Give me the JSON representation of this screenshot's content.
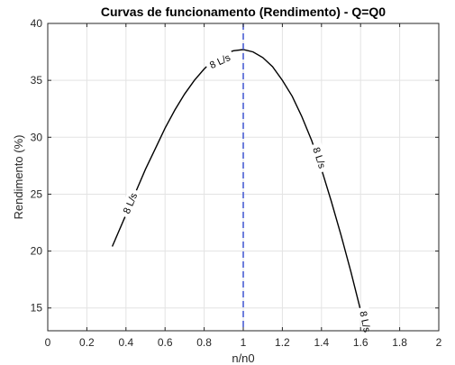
{
  "chart_data": {
    "type": "line",
    "title": "Curvas de funcionamento (Rendimento) - Q=Q0",
    "xlabel": "n/n0",
    "ylabel": "Rendimento (%)",
    "xlim": [
      0,
      2
    ],
    "ylim": [
      13,
      40
    ],
    "xticks": [
      0,
      0.2,
      0.4,
      0.6,
      0.8,
      1,
      1.2,
      1.4,
      1.6,
      1.8,
      2
    ],
    "xtick_labels": [
      "0",
      "0.2",
      "0.4",
      "0.6",
      "0.8",
      "1",
      "1.2",
      "1.4",
      "1.6",
      "1.8",
      "2"
    ],
    "yticks": [
      15,
      20,
      25,
      30,
      35,
      40
    ],
    "ytick_labels": [
      "15",
      "20",
      "25",
      "30",
      "35",
      "40"
    ],
    "grid": true,
    "series": [
      {
        "x": [
          0.33,
          0.36,
          0.4,
          0.45,
          0.5,
          0.55,
          0.6,
          0.65,
          0.7,
          0.75,
          0.8,
          0.85,
          0.9,
          0.95,
          1.0,
          1.05,
          1.1,
          1.15,
          1.2,
          1.25,
          1.3,
          1.35,
          1.4,
          1.45,
          1.5,
          1.55,
          1.6,
          1.615
        ],
        "y": [
          20.4,
          21.6,
          23.2,
          25.2,
          27.2,
          29.0,
          30.8,
          32.4,
          33.8,
          35.0,
          36.0,
          36.8,
          37.3,
          37.6,
          37.7,
          37.5,
          37.0,
          36.2,
          35.0,
          33.6,
          31.8,
          29.7,
          27.2,
          24.4,
          21.4,
          18.2,
          14.8,
          13.6
        ],
        "color": "#000000"
      }
    ],
    "contour_labels": [
      {
        "text": "8 L/s",
        "x": 0.42,
        "y": 24.2
      },
      {
        "text": "8 L/s",
        "x": 0.88,
        "y": 36.7
      },
      {
        "text": "8 L/s",
        "x": 1.39,
        "y": 28.2
      },
      {
        "text": "8 L/s",
        "x": 1.625,
        "y": 13.8
      }
    ],
    "reference_line": {
      "x": 1,
      "style": "dashed",
      "color": "#4a5ed4"
    }
  }
}
